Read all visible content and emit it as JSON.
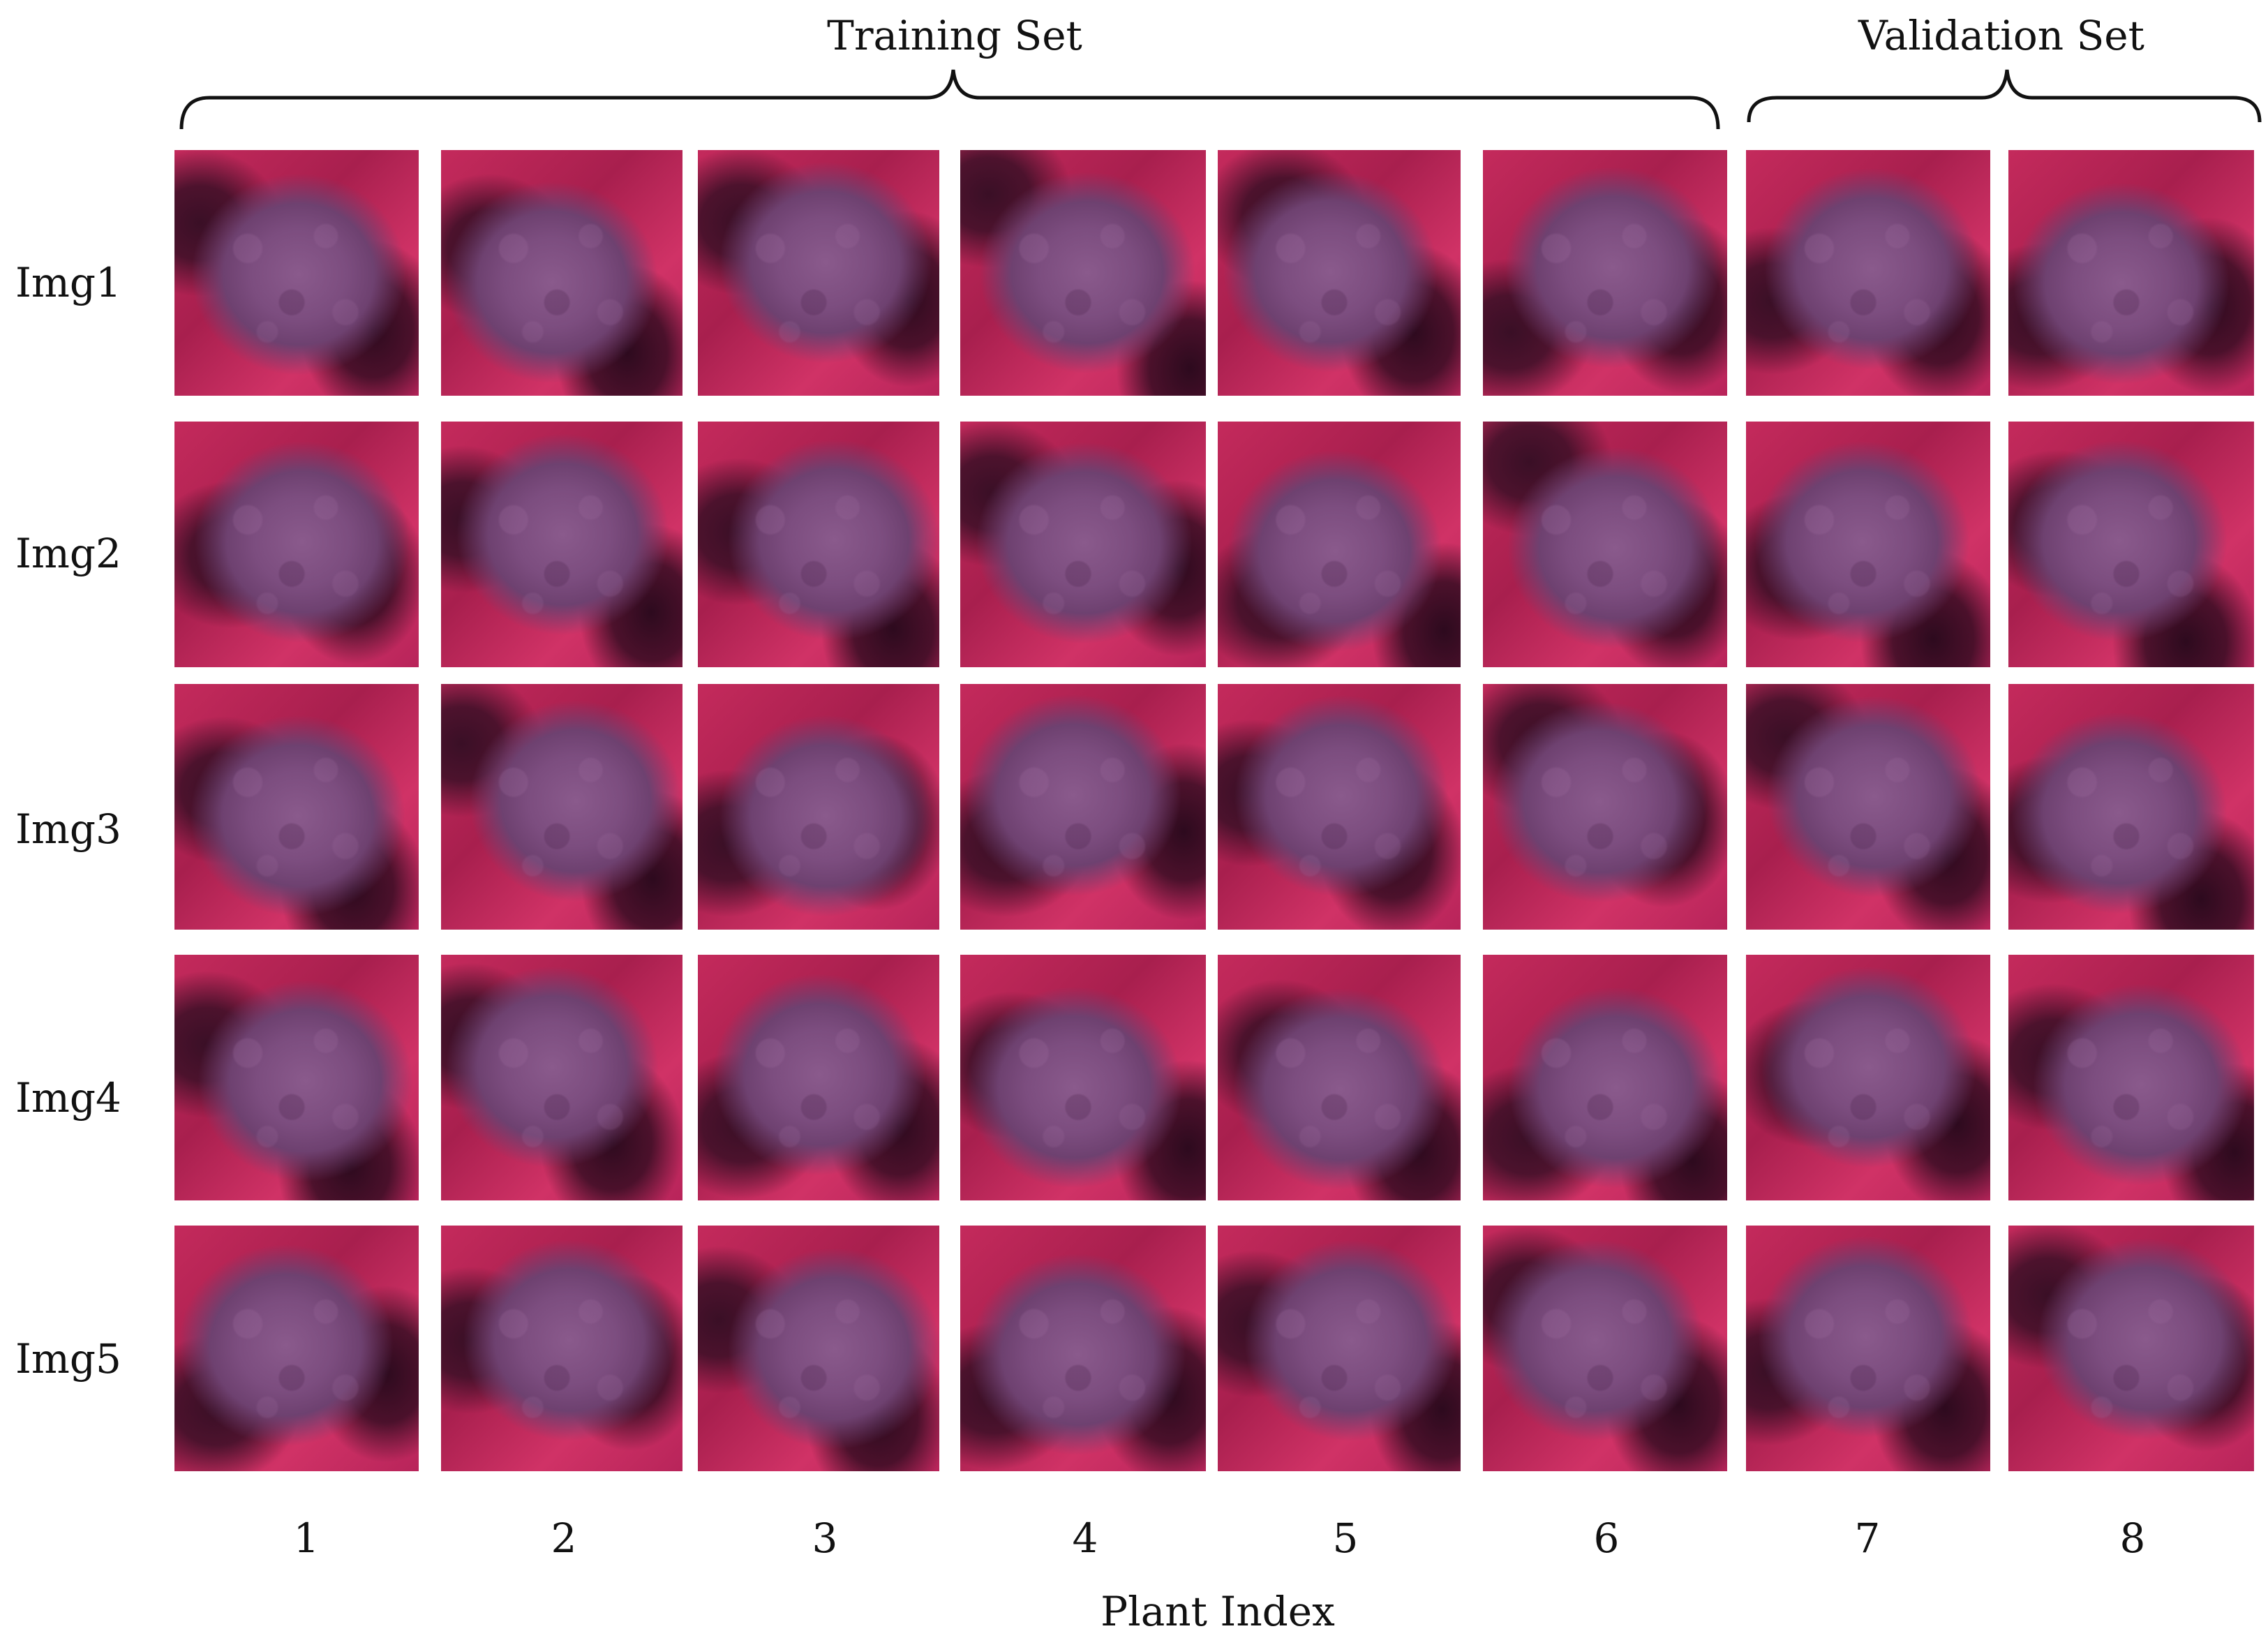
{
  "groups": {
    "training": "Training Set",
    "validation": "Validation Set"
  },
  "rows": [
    "Img1",
    "Img2",
    "Img3",
    "Img4",
    "Img5"
  ],
  "columns": [
    "1",
    "2",
    "3",
    "4",
    "5",
    "6",
    "7",
    "8"
  ],
  "axis_title": "Plant Index",
  "colors": {
    "background_red": "#c42a5c",
    "plant_purple": "#7c4d7f",
    "shadow": "#3a0f26"
  }
}
